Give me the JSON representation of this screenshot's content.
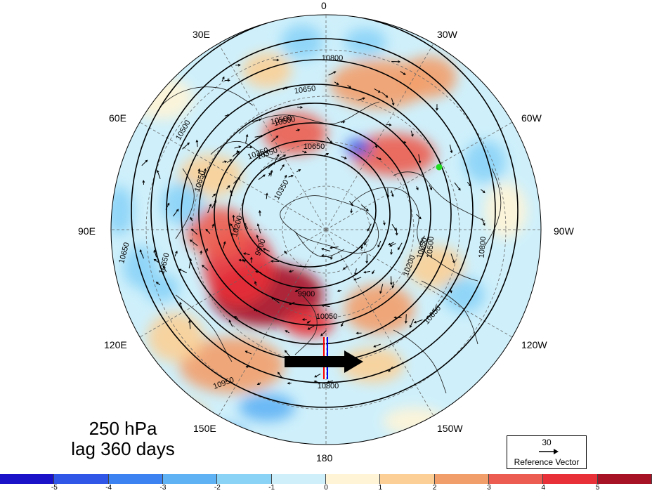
{
  "map": {
    "projection": "polar-stereographic-north",
    "variable_level": "250 hPa",
    "lag": "lag 360 days",
    "longitude_labels": [
      "0",
      "30W",
      "60W",
      "90W",
      "120W",
      "150W",
      "180",
      "150E",
      "120E",
      "90E",
      "60E",
      "30E"
    ],
    "contour_labels": [
      "10800",
      "10650",
      "10500",
      "10350",
      "10650",
      "10200",
      "10050",
      "9900",
      "9900",
      "10050",
      "10350",
      "10500",
      "10650",
      "10800",
      "10950",
      "10650",
      "10650",
      "10200",
      "10500",
      "10650",
      "10800",
      "10500",
      "10350"
    ],
    "contour_levels": [
      9900,
      10050,
      10200,
      10350,
      10500,
      10650,
      10800,
      10950
    ],
    "marker_color": "#22dd22",
    "arrow_color": "#000000",
    "line_colors": [
      "#ff0000",
      "#0000ff"
    ]
  },
  "reference_vector": {
    "magnitude": "30",
    "label": "Reference Vector"
  },
  "colorbar": {
    "colors": [
      "#1a12c8",
      "#2f56e6",
      "#3c82f0",
      "#5fb2f4",
      "#8ad3f7",
      "#cff0fb",
      "#fff4d6",
      "#fbcf96",
      "#f29e6b",
      "#ec5c50",
      "#e83038",
      "#a81225"
    ],
    "ticks": [
      "-5",
      "-4",
      "-3",
      "-2",
      "-1",
      "0",
      "1",
      "2",
      "3",
      "4",
      "5"
    ]
  }
}
